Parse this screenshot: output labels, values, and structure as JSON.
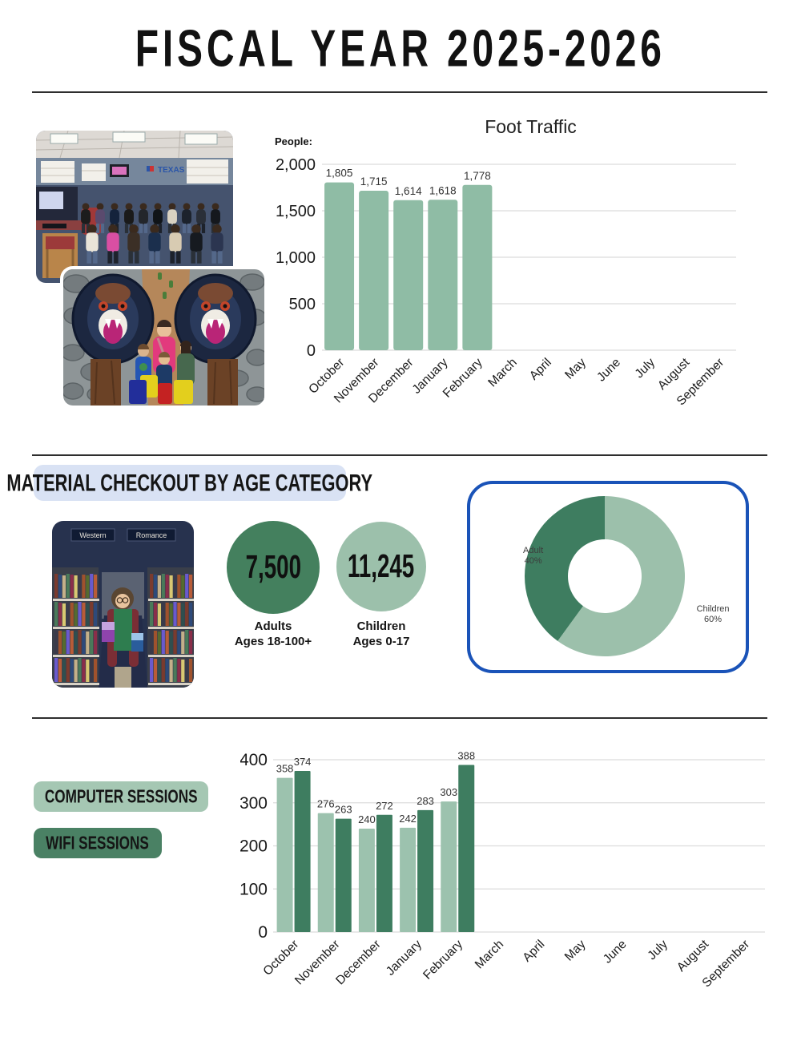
{
  "header": {
    "title": "FISCAL YEAR 2025-2026"
  },
  "checkout": {
    "heading": "MATERIAL CHECKOUT BY AGE CATEGORY",
    "adults_value": "7,500",
    "adults_label_line1": "Adults",
    "adults_label_line2": "Ages 18-100+",
    "children_value": "11,245",
    "children_label_line1": "Children",
    "children_label_line2": "Ages 0-17"
  },
  "photos": {
    "library_sign_texas": "TEXAS",
    "stacks_sign_western": "Western",
    "stacks_sign_romance": "Romance"
  },
  "colors": {
    "light_green": "#8FBCA5",
    "light_green_alt": "#9CC2AE",
    "dark_green": "#3E7D60",
    "accent_blue": "#1A53B8",
    "heading_pill_blue": "#D9E2F4"
  },
  "chart_data": [
    {
      "type": "bar",
      "title": "Foot Traffic",
      "ylabel": "People:",
      "categories": [
        "October",
        "November",
        "December",
        "January",
        "February",
        "March",
        "April",
        "May",
        "June",
        "July",
        "August",
        "September"
      ],
      "values": [
        1805,
        1715,
        1614,
        1618,
        1778,
        null,
        null,
        null,
        null,
        null,
        null,
        null
      ],
      "value_labels": [
        "1,805",
        "1,715",
        "1,614",
        "1,618",
        "1,778"
      ],
      "ylim": [
        0,
        2000
      ],
      "ytick_step": 500,
      "yticks": [
        "0",
        "500",
        "1,000",
        "1,500",
        "2,000"
      ],
      "bar_color": "#8FBCA5",
      "grid": true,
      "legend_position": "none"
    },
    {
      "type": "pie",
      "subtype": "donut",
      "slices": [
        {
          "label": "Children",
          "pct": 60,
          "color": "#9CC0AB"
        },
        {
          "label": "Adult",
          "pct": 40,
          "color": "#3E7D60"
        }
      ],
      "start_angle_deg": 0,
      "direction": "clockwise"
    },
    {
      "type": "bar",
      "categories": [
        "October",
        "November",
        "December",
        "January",
        "February",
        "March",
        "April",
        "May",
        "June",
        "July",
        "August",
        "September"
      ],
      "series": [
        {
          "name": "COMPUTER SESSIONS",
          "color": "#9CC2AE",
          "values": [
            358,
            276,
            240,
            242,
            303,
            null,
            null,
            null,
            null,
            null,
            null,
            null
          ]
        },
        {
          "name": "WIFI SESSIONS",
          "color": "#3E7D60",
          "values": [
            374,
            263,
            272,
            283,
            388,
            null,
            null,
            null,
            null,
            null,
            null,
            null
          ]
        }
      ],
      "ylim": [
        0,
        400
      ],
      "ytick_step": 100,
      "yticks": [
        "0",
        "100",
        "200",
        "300",
        "400"
      ],
      "grid": true,
      "legend_position": "left"
    }
  ]
}
